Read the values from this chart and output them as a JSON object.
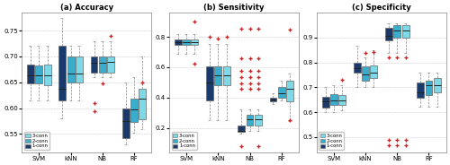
{
  "title_a": "(a) Accuracy",
  "title_b": "(b) Sensitivity",
  "title_c": "(c) Specificity",
  "categories": [
    "SVM",
    "kNN",
    "NB",
    "RF"
  ],
  "colors": {
    "3-conn": "#7dd8e8",
    "2-conn": "#3aadcc",
    "1-conn": "#1a3a6b"
  },
  "box_order": [
    "1-conn",
    "2-conn",
    "3-conn"
  ],
  "accuracy": {
    "SVM": {
      "1-conn": {
        "whislo": 0.615,
        "q1": 0.648,
        "med": 0.663,
        "q3": 0.685,
        "whishi": 0.72,
        "fliers": []
      },
      "2-conn": {
        "whislo": 0.615,
        "q1": 0.648,
        "med": 0.663,
        "q3": 0.683,
        "whishi": 0.72,
        "fliers": []
      },
      "3-conn": {
        "whislo": 0.615,
        "q1": 0.645,
        "med": 0.663,
        "q3": 0.685,
        "whishi": 0.72,
        "fliers": []
      }
    },
    "kNN": {
      "1-conn": {
        "whislo": 0.58,
        "q1": 0.615,
        "med": 0.638,
        "q3": 0.72,
        "whishi": 0.775,
        "fliers": []
      },
      "2-conn": {
        "whislo": 0.615,
        "q1": 0.65,
        "med": 0.667,
        "q3": 0.7,
        "whishi": 0.72,
        "fliers": []
      },
      "3-conn": {
        "whislo": 0.615,
        "q1": 0.65,
        "med": 0.667,
        "q3": 0.7,
        "whishi": 0.72,
        "fliers": []
      }
    },
    "NB": {
      "1-conn": {
        "whislo": 0.66,
        "q1": 0.668,
        "med": 0.688,
        "q3": 0.7,
        "whishi": 0.73,
        "fliers": [
          0.595,
          0.61
        ]
      },
      "2-conn": {
        "whislo": 0.66,
        "q1": 0.668,
        "med": 0.688,
        "q3": 0.7,
        "whishi": 0.73,
        "fliers": [
          0.648
        ]
      },
      "3-conn": {
        "whislo": 0.66,
        "q1": 0.668,
        "med": 0.69,
        "q3": 0.7,
        "whishi": 0.73,
        "fliers": [
          0.74
        ]
      }
    },
    "RF": {
      "1-conn": {
        "whislo": 0.53,
        "q1": 0.543,
        "med": 0.575,
        "q3": 0.6,
        "whishi": 0.65,
        "fliers": []
      },
      "2-conn": {
        "whislo": 0.553,
        "q1": 0.573,
        "med": 0.598,
        "q3": 0.618,
        "whishi": 0.66,
        "fliers": []
      },
      "3-conn": {
        "whislo": 0.56,
        "q1": 0.578,
        "med": 0.618,
        "q3": 0.638,
        "whishi": 0.7,
        "fliers": [
          0.65
        ]
      }
    }
  },
  "sensitivity": {
    "SVM": {
      "1-conn": {
        "whislo": 0.688,
        "q1": 0.748,
        "med": 0.762,
        "q3": 0.78,
        "whishi": 0.82,
        "fliers": []
      },
      "2-conn": {
        "whislo": 0.688,
        "q1": 0.748,
        "med": 0.762,
        "q3": 0.78,
        "whishi": 0.82,
        "fliers": []
      },
      "3-conn": {
        "whislo": 0.688,
        "q1": 0.748,
        "med": 0.762,
        "q3": 0.78,
        "whishi": 0.82,
        "fliers": [
          0.9,
          0.62
        ]
      }
    },
    "kNN": {
      "1-conn": {
        "whislo": 0.25,
        "q1": 0.38,
        "med": 0.5,
        "q3": 0.608,
        "whishi": 0.75,
        "fliers": [
          0.8
        ]
      },
      "2-conn": {
        "whislo": 0.25,
        "q1": 0.48,
        "med": 0.545,
        "q3": 0.608,
        "whishi": 0.75,
        "fliers": [
          0.79
        ]
      },
      "3-conn": {
        "whislo": 0.25,
        "q1": 0.48,
        "med": 0.545,
        "q3": 0.608,
        "whishi": 0.75,
        "fliers": [
          0.8
        ]
      }
    },
    "NB": {
      "1-conn": {
        "whislo": 0.165,
        "q1": 0.172,
        "med": 0.178,
        "q3": 0.215,
        "whishi": 0.32,
        "fliers": [
          0.855,
          0.66,
          0.575,
          0.535,
          0.49,
          0.455,
          0.08
        ]
      },
      "2-conn": {
        "whislo": 0.18,
        "q1": 0.215,
        "med": 0.255,
        "q3": 0.285,
        "whishi": 0.32,
        "fliers": [
          0.855,
          0.66,
          0.575,
          0.535,
          0.49,
          0.455
        ]
      },
      "3-conn": {
        "whislo": 0.18,
        "q1": 0.215,
        "med": 0.255,
        "q3": 0.285,
        "whishi": 0.32,
        "fliers": [
          0.855,
          0.66,
          0.575,
          0.535,
          0.49,
          0.455,
          0.08
        ]
      }
    },
    "RF": {
      "1-conn": {
        "whislo": 0.355,
        "q1": 0.372,
        "med": 0.388,
        "q3": 0.4,
        "whishi": 0.43,
        "fliers": []
      },
      "2-conn": {
        "whislo": 0.378,
        "q1": 0.398,
        "med": 0.428,
        "q3": 0.468,
        "whishi": 0.51,
        "fliers": []
      },
      "3-conn": {
        "whislo": 0.245,
        "q1": 0.372,
        "med": 0.458,
        "q3": 0.508,
        "whishi": 0.558,
        "fliers": [
          0.85,
          0.25
        ]
      }
    }
  },
  "specificity": {
    "SVM": {
      "1-conn": {
        "whislo": 0.6,
        "q1": 0.62,
        "med": 0.643,
        "q3": 0.663,
        "whishi": 0.703,
        "fliers": []
      },
      "2-conn": {
        "whislo": 0.6,
        "q1": 0.628,
        "med": 0.648,
        "q3": 0.673,
        "whishi": 0.708,
        "fliers": []
      },
      "3-conn": {
        "whislo": 0.608,
        "q1": 0.628,
        "med": 0.648,
        "q3": 0.668,
        "whishi": 0.708,
        "fliers": [
          0.73
        ]
      }
    },
    "kNN": {
      "1-conn": {
        "whislo": 0.7,
        "q1": 0.758,
        "med": 0.778,
        "q3": 0.798,
        "whishi": 0.868,
        "fliers": []
      },
      "2-conn": {
        "whislo": 0.7,
        "q1": 0.728,
        "med": 0.753,
        "q3": 0.783,
        "whishi": 0.82,
        "fliers": [
          0.838
        ]
      },
      "3-conn": {
        "whislo": 0.7,
        "q1": 0.738,
        "med": 0.758,
        "q3": 0.788,
        "whishi": 0.848,
        "fliers": [
          0.84
        ]
      }
    },
    "NB": {
      "1-conn": {
        "whislo": 0.838,
        "q1": 0.888,
        "med": 0.908,
        "q3": 0.938,
        "whishi": 0.958,
        "fliers": [
          0.82,
          0.49,
          0.468
        ]
      },
      "2-conn": {
        "whislo": 0.838,
        "q1": 0.898,
        "med": 0.928,
        "q3": 0.948,
        "whishi": 0.958,
        "fliers": [
          0.82,
          0.49,
          0.468
        ]
      },
      "3-conn": {
        "whislo": 0.838,
        "q1": 0.898,
        "med": 0.928,
        "q3": 0.948,
        "whishi": 0.958,
        "fliers": [
          0.82,
          0.49,
          0.468
        ]
      }
    },
    "RF": {
      "1-conn": {
        "whislo": 0.623,
        "q1": 0.658,
        "med": 0.678,
        "q3": 0.718,
        "whishi": 0.758,
        "fliers": []
      },
      "2-conn": {
        "whislo": 0.623,
        "q1": 0.668,
        "med": 0.708,
        "q3": 0.728,
        "whishi": 0.758,
        "fliers": []
      },
      "3-conn": {
        "whislo": 0.623,
        "q1": 0.678,
        "med": 0.708,
        "q3": 0.738,
        "whishi": 0.758,
        "fliers": []
      }
    }
  },
  "ylim_a": [
    0.515,
    0.785
  ],
  "ylim_b": [
    0.04,
    0.96
  ],
  "ylim_c": [
    0.44,
    1.0
  ],
  "yticks_a": [
    0.55,
    0.6,
    0.65,
    0.7,
    0.75
  ],
  "yticks_b": [
    0.2,
    0.4,
    0.6,
    0.8
  ],
  "yticks_c": [
    0.5,
    0.6,
    0.7,
    0.8,
    0.9
  ]
}
